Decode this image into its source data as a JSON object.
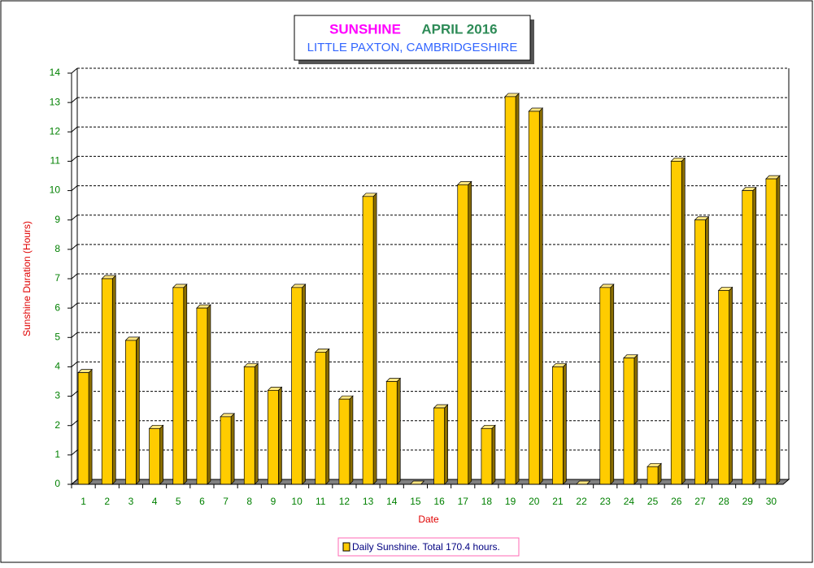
{
  "chart_data": {
    "type": "bar3d",
    "title": [
      "SUNSHINE",
      "APRIL 2016"
    ],
    "title_colors": [
      "#ff00ff",
      "#2e8b57"
    ],
    "subtitle": "LITTLE PAXTON, CAMBRIDGESHIRE",
    "subtitle_color": "#3366ff",
    "x_label": "Date",
    "y_label": "Sunshine Duration (Hours)",
    "categories": [
      "1",
      "2",
      "3",
      "4",
      "5",
      "6",
      "7",
      "8",
      "9",
      "10",
      "11",
      "12",
      "13",
      "14",
      "15",
      "16",
      "17",
      "18",
      "19",
      "20",
      "21",
      "22",
      "23",
      "24",
      "25",
      "26",
      "27",
      "28",
      "29",
      "30"
    ],
    "series": [
      {
        "name": "Daily Sunshine. Total 170.4 hours.",
        "color": "#ffcc00",
        "values": [
          3.8,
          7.0,
          4.9,
          1.9,
          6.7,
          6.0,
          2.3,
          4.0,
          3.2,
          6.7,
          4.5,
          2.9,
          9.8,
          3.5,
          0,
          2.6,
          10.2,
          1.9,
          13.2,
          12.7,
          4.0,
          0,
          6.7,
          4.3,
          0.6,
          11.0,
          9.0,
          6.6,
          10.0,
          10.4
        ]
      }
    ],
    "ylim": [
      0,
      14
    ],
    "yticks": [
      0,
      1,
      2,
      3,
      4,
      5,
      6,
      7,
      8,
      9,
      10,
      11,
      12,
      13,
      14
    ],
    "grid": true
  }
}
